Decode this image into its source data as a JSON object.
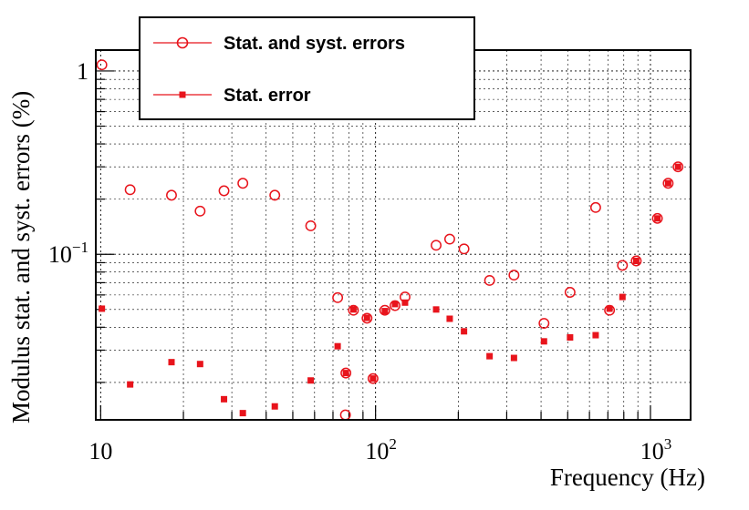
{
  "chart_data": {
    "type": "scatter",
    "xlabel": "Frequency (Hz)",
    "ylabel": "Modulus stat. and syst. errors (%)",
    "x_scale": "log",
    "y_scale": "log",
    "xlim": [
      9.6,
      1400
    ],
    "ylim": [
      0.0125,
      1.3
    ],
    "grid": true,
    "legend_position": "top-left",
    "x_ticks": [
      {
        "value": 10,
        "base": "10",
        "exp": ""
      },
      {
        "value": 100,
        "base": "10",
        "exp": "2"
      },
      {
        "value": 1000,
        "base": "10",
        "exp": "3"
      }
    ],
    "y_ticks": [
      {
        "value": 1,
        "base": "1",
        "exp": ""
      },
      {
        "value": 0.1,
        "base": "10",
        "exp": "−1"
      }
    ],
    "series": [
      {
        "name": "Stat. and syst. errors",
        "marker": "open-circle",
        "color": "#e8141c",
        "points": [
          [
            10.1,
            1.08
          ],
          [
            12.8,
            0.225
          ],
          [
            18.1,
            0.21
          ],
          [
            23.0,
            0.172
          ],
          [
            28.1,
            0.222
          ],
          [
            32.9,
            0.244
          ],
          [
            43.0,
            0.21
          ],
          [
            58.1,
            0.143
          ],
          [
            72.8,
            0.058
          ],
          [
            77.7,
            0.0133
          ],
          [
            78.0,
            0.0225
          ],
          [
            83.1,
            0.0495
          ],
          [
            93.1,
            0.0448
          ],
          [
            97.9,
            0.021
          ],
          [
            108.1,
            0.0495
          ],
          [
            117.7,
            0.0525
          ],
          [
            128.0,
            0.0585
          ],
          [
            166.1,
            0.112
          ],
          [
            186.1,
            0.121
          ],
          [
            209.8,
            0.107
          ],
          [
            259.9,
            0.072
          ],
          [
            318.8,
            0.077
          ],
          [
            410.0,
            0.042
          ],
          [
            510.0,
            0.062
          ],
          [
            632.0,
            0.18
          ],
          [
            709.8,
            0.0495
          ],
          [
            791.0,
            0.087
          ],
          [
            887.9,
            0.092
          ],
          [
            1060.0,
            0.157
          ],
          [
            1160.0,
            0.244
          ],
          [
            1260.0,
            0.3
          ]
        ]
      },
      {
        "name": "Stat. error",
        "marker": "filled-square",
        "color": "#e8141c",
        "points": [
          [
            10.1,
            0.0505
          ],
          [
            12.8,
            0.0195
          ],
          [
            18.1,
            0.0258
          ],
          [
            23.0,
            0.0252
          ],
          [
            28.1,
            0.0162
          ],
          [
            32.9,
            0.0136
          ],
          [
            43.0,
            0.0148
          ],
          [
            58.1,
            0.0205
          ],
          [
            72.8,
            0.0315
          ],
          [
            78.0,
            0.0225
          ],
          [
            83.1,
            0.05
          ],
          [
            93.1,
            0.045
          ],
          [
            97.9,
            0.021
          ],
          [
            108.1,
            0.049
          ],
          [
            117.7,
            0.0535
          ],
          [
            128.0,
            0.0545
          ],
          [
            166.1,
            0.05
          ],
          [
            186.1,
            0.0445
          ],
          [
            209.8,
            0.038
          ],
          [
            259.9,
            0.0278
          ],
          [
            318.8,
            0.0272
          ],
          [
            410.0,
            0.0335
          ],
          [
            510.0,
            0.0352
          ],
          [
            632.0,
            0.0362
          ],
          [
            709.8,
            0.0505
          ],
          [
            791.0,
            0.0585
          ],
          [
            887.9,
            0.092
          ],
          [
            1060.0,
            0.157
          ],
          [
            1160.0,
            0.244
          ],
          [
            1260.0,
            0.3
          ]
        ]
      }
    ]
  }
}
